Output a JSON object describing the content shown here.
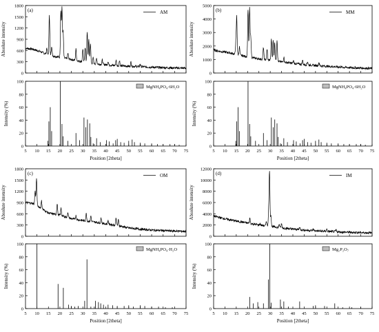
{
  "chart_data": [
    {
      "panel_label": "(a)",
      "top": {
        "type": "line",
        "legend": "AM",
        "ylabel": "Absolute intensity",
        "ylim": [
          0,
          1800
        ],
        "yticks": [
          0,
          300,
          600,
          900,
          1200,
          1500,
          1800
        ],
        "baseline": [
          [
            5,
            660
          ],
          [
            8,
            640
          ],
          [
            12,
            560
          ],
          [
            15,
            480
          ],
          [
            20,
            420
          ],
          [
            25,
            360
          ],
          [
            30,
            300
          ],
          [
            35,
            250
          ],
          [
            40,
            220
          ],
          [
            45,
            195
          ],
          [
            50,
            180
          ],
          [
            55,
            170
          ],
          [
            60,
            155
          ],
          [
            65,
            145
          ],
          [
            70,
            135
          ],
          [
            75,
            130
          ]
        ],
        "peaks": [
          [
            14.3,
            170
          ],
          [
            15.4,
            1100
          ],
          [
            16.4,
            260
          ],
          [
            20.4,
            1250
          ],
          [
            20.9,
            1300
          ],
          [
            21.4,
            700
          ],
          [
            23.5,
            150
          ],
          [
            27.0,
            300
          ],
          [
            30.0,
            350
          ],
          [
            31.0,
            400
          ],
          [
            31.9,
            800
          ],
          [
            32.6,
            600
          ],
          [
            33.3,
            520
          ],
          [
            34.5,
            150
          ],
          [
            36.0,
            150
          ],
          [
            38.5,
            120
          ],
          [
            41.0,
            100
          ],
          [
            44.5,
            150
          ],
          [
            46.0,
            150
          ],
          [
            51.0,
            120
          ],
          [
            55.0,
            70
          ]
        ]
      },
      "bottom": {
        "type": "bar",
        "legend": "MgNH₄PO₄·6H₂O",
        "ylabel": "Intensity (%)",
        "xlabel": "Position [2theta]",
        "ylim": [
          0,
          100
        ],
        "yticks": [
          0,
          20,
          40,
          60,
          80,
          100
        ],
        "xlim": [
          5,
          75
        ],
        "xticks": [
          5,
          10,
          15,
          20,
          25,
          30,
          35,
          40,
          45,
          50,
          55,
          60,
          65,
          70,
          75
        ],
        "x": [
          14.8,
          15.2,
          15.8,
          16.4,
          20.2,
          20.9,
          21.4,
          23.5,
          27.0,
          28.6,
          30.5,
          31.3,
          32.0,
          33.0,
          33.5,
          34.5,
          36.0,
          37.6,
          40.3,
          41.5,
          43.2,
          44.3,
          45.0,
          46.5,
          48.0,
          50.0,
          51.5,
          52.5,
          55.0,
          57.0,
          60.0,
          62.5,
          65.0,
          68.0,
          70.0,
          72.0
        ],
        "values": [
          8,
          38,
          60,
          23,
          100,
          34,
          15,
          8,
          20,
          9,
          44,
          29,
          41,
          35,
          14,
          4,
          12,
          6,
          9,
          7,
          4,
          9,
          11,
          6,
          5,
          8,
          10,
          6,
          5,
          4,
          4,
          3,
          3,
          3,
          3,
          2
        ]
      }
    },
    {
      "panel_label": "(b)",
      "top": {
        "type": "line",
        "legend": "MM",
        "ylabel": "Absolute intensity",
        "ylim": [
          0,
          5000
        ],
        "yticks": [
          0,
          1000,
          2000,
          3000,
          4000,
          5000
        ],
        "baseline": [
          [
            5,
            1700
          ],
          [
            8,
            1600
          ],
          [
            12,
            1500
          ],
          [
            15,
            1380
          ],
          [
            20,
            1200
          ],
          [
            25,
            1050
          ],
          [
            30,
            950
          ],
          [
            35,
            820
          ],
          [
            40,
            720
          ],
          [
            45,
            620
          ],
          [
            50,
            560
          ],
          [
            55,
            500
          ],
          [
            60,
            450
          ],
          [
            65,
            400
          ],
          [
            70,
            370
          ],
          [
            75,
            340
          ]
        ],
        "peaks": [
          [
            14.8,
            800
          ],
          [
            15.2,
            2800
          ],
          [
            16.4,
            600
          ],
          [
            20.2,
            3500
          ],
          [
            20.9,
            3600
          ],
          [
            21.4,
            1600
          ],
          [
            27.0,
            900
          ],
          [
            28.6,
            800
          ],
          [
            30.5,
            1600
          ],
          [
            31.3,
            1500
          ],
          [
            32.0,
            1400
          ],
          [
            33.0,
            1600
          ],
          [
            36.0,
            400
          ],
          [
            40.3,
            200
          ],
          [
            44.3,
            300
          ],
          [
            46.5,
            250
          ],
          [
            51.5,
            250
          ]
        ]
      },
      "bottom": {
        "type": "bar",
        "legend": "MgNH₄PO₄·6H₂O",
        "ylabel": "Intensity (%)",
        "xlabel": "Position [2theta]",
        "ylim": [
          0,
          100
        ],
        "yticks": [
          0,
          20,
          40,
          60,
          80,
          100
        ],
        "xlim": [
          5,
          75
        ],
        "xticks": [
          5,
          10,
          15,
          20,
          25,
          30,
          35,
          40,
          45,
          50,
          55,
          60,
          65,
          70,
          75
        ],
        "x": [
          14.8,
          15.2,
          15.8,
          16.4,
          20.2,
          20.9,
          21.4,
          23.5,
          27.0,
          28.6,
          30.5,
          31.3,
          32.0,
          33.0,
          33.5,
          34.5,
          36.0,
          37.6,
          40.3,
          41.5,
          43.2,
          44.3,
          45.0,
          46.5,
          48.0,
          50.0,
          51.5,
          52.5,
          55.0,
          57.0,
          60.0,
          62.5,
          65.0,
          68.0,
          70.0,
          72.0
        ],
        "values": [
          8,
          38,
          60,
          23,
          100,
          34,
          15,
          8,
          20,
          9,
          44,
          29,
          41,
          35,
          14,
          4,
          12,
          6,
          9,
          7,
          4,
          9,
          11,
          6,
          5,
          8,
          10,
          6,
          5,
          4,
          4,
          3,
          3,
          3,
          3,
          2
        ]
      }
    },
    {
      "panel_label": "(c)",
      "top": {
        "type": "line",
        "legend": "OM",
        "ylabel": "Absolute intensity",
        "ylim": [
          0,
          1800
        ],
        "yticks": [
          0,
          300,
          600,
          900,
          1200,
          1500,
          1800
        ],
        "baseline": [
          [
            5,
            900
          ],
          [
            8,
            880
          ],
          [
            10,
            820
          ],
          [
            15,
            620
          ],
          [
            20,
            560
          ],
          [
            25,
            470
          ],
          [
            30,
            420
          ],
          [
            35,
            380
          ],
          [
            40,
            330
          ],
          [
            45,
            290
          ],
          [
            50,
            220
          ],
          [
            55,
            190
          ],
          [
            60,
            165
          ],
          [
            65,
            150
          ],
          [
            70,
            140
          ],
          [
            75,
            130
          ]
        ],
        "peaks": [
          [
            9.2,
            350
          ],
          [
            9.8,
            700
          ],
          [
            12.0,
            200
          ],
          [
            18.8,
            300
          ],
          [
            20.5,
            200
          ],
          [
            23.5,
            150
          ],
          [
            27.0,
            100
          ],
          [
            31.5,
            200
          ],
          [
            33.5,
            150
          ],
          [
            38.0,
            150
          ],
          [
            41.0,
            100
          ],
          [
            44.5,
            200
          ],
          [
            45.5,
            150
          ]
        ]
      },
      "bottom": {
        "type": "bar",
        "legend": "MgNH₄PO₄·H₂O",
        "ylabel": "Intensity (%)",
        "xlabel": "Position [2theta]",
        "ylim": [
          0,
          100
        ],
        "yticks": [
          0,
          20,
          40,
          60,
          80,
          100
        ],
        "xlim": [
          5,
          75
        ],
        "xticks": [
          5,
          10,
          15,
          20,
          25,
          30,
          35,
          40,
          45,
          50,
          55,
          60,
          65,
          70,
          75
        ],
        "x": [
          10.0,
          19.2,
          21.5,
          23.8,
          25.0,
          26.5,
          28.0,
          30.8,
          31.8,
          33.5,
          35.5,
          36.8,
          37.8,
          39.0,
          41.0,
          43.0,
          45.0,
          48.0,
          50.0,
          52.0,
          55.0,
          57.0,
          60.0,
          63.0,
          66.0,
          69.0
        ],
        "values": [
          100,
          38,
          32,
          6,
          4,
          3,
          4,
          12,
          76,
          3,
          12,
          10,
          8,
          6,
          6,
          5,
          4,
          4,
          5,
          3,
          5,
          4,
          3,
          3,
          2,
          2
        ]
      }
    },
    {
      "panel_label": "(d)",
      "top": {
        "type": "line",
        "legend": "IM",
        "ylabel": "Absolute intensity",
        "ylim": [
          0,
          12000
        ],
        "yticks": [
          0,
          2000,
          4000,
          6000,
          8000,
          10000,
          12000
        ],
        "baseline": [
          [
            5,
            3600
          ],
          [
            10,
            3100
          ],
          [
            15,
            2700
          ],
          [
            20,
            2350
          ],
          [
            25,
            2000
          ],
          [
            30,
            1750
          ],
          [
            35,
            1500
          ],
          [
            40,
            1280
          ],
          [
            45,
            1100
          ],
          [
            50,
            970
          ],
          [
            55,
            870
          ],
          [
            60,
            780
          ],
          [
            65,
            700
          ],
          [
            70,
            650
          ],
          [
            75,
            600
          ]
        ],
        "peaks": [
          [
            21.0,
            900
          ],
          [
            25.5,
            300
          ],
          [
            28.3,
            900
          ],
          [
            29.3,
            2500
          ],
          [
            29.7,
            9800
          ],
          [
            30.3,
            2000
          ],
          [
            34.0,
            600
          ],
          [
            35.0,
            700
          ],
          [
            43.0,
            500
          ],
          [
            49.0,
            300
          ],
          [
            55.0,
            400
          ],
          [
            59.0,
            300
          ]
        ]
      },
      "bottom": {
        "type": "bar",
        "legend": "Mg₂P₂O₇",
        "ylabel": "Intensity (%)",
        "xlabel": "Position [2theta]",
        "ylim": [
          0,
          100
        ],
        "yticks": [
          0,
          20,
          40,
          60,
          80,
          100
        ],
        "xlim": [
          5,
          75
        ],
        "xticks": [
          5,
          10,
          15,
          20,
          25,
          30,
          35,
          40,
          45,
          50,
          55,
          60,
          65,
          70,
          75
        ],
        "x": [
          21.0,
          22.5,
          24.5,
          27.0,
          29.2,
          29.8,
          30.4,
          34.5,
          36.0,
          38.0,
          43.0,
          49.0,
          50.0,
          54.0,
          58.5,
          62.0,
          66.0,
          70.0
        ],
        "values": [
          18,
          8,
          10,
          8,
          45,
          100,
          9,
          14,
          11,
          3,
          11,
          4,
          5,
          4,
          8,
          2,
          2,
          2
        ]
      }
    }
  ]
}
